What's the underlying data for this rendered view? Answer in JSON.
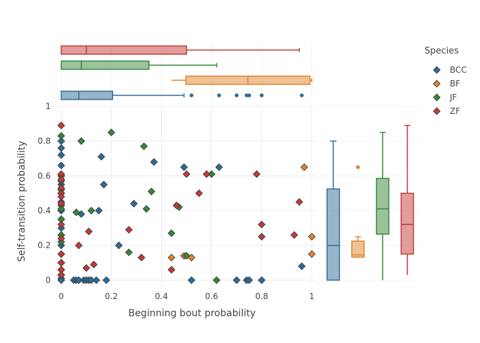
{
  "chart_data": {
    "type": "scatter",
    "title": "",
    "xlabel": "Beginning bout probability",
    "ylabel": "Self-transition probability",
    "xlim": [
      -0.02,
      1.02
    ],
    "ylim": [
      -0.03,
      1.0
    ],
    "x_ticks": [
      0,
      0.2,
      0.4,
      0.6,
      0.8,
      1
    ],
    "x_tick_labels": [
      "0",
      "0.2",
      "0.4",
      "0.6",
      "0.8",
      "1"
    ],
    "y_ticks": [
      0,
      0.2,
      0.4,
      0.6,
      0.8,
      1
    ],
    "y_tick_labels": [
      "0",
      "0.2",
      "0.4",
      "0.6",
      "0.8",
      "1"
    ],
    "grid": true,
    "marginal_x": "box (horizontal, per species)",
    "marginal_y": "box (vertical, per species)",
    "legend": {
      "title": "Species",
      "position": "top-right"
    },
    "series": [
      {
        "name": "BCC",
        "color": "#2f6b96",
        "x": [
          0,
          0,
          0,
          0,
          0,
          0,
          0,
          0,
          0,
          0,
          0,
          0,
          0,
          0,
          0,
          0,
          0,
          0,
          0,
          0.05,
          0.06,
          0.07,
          0.08,
          0.09,
          0.1,
          0.11,
          0.12,
          0.14,
          0.15,
          0.16,
          0.17,
          0.18,
          0.23,
          0.29,
          0.37,
          0.49,
          0.52,
          0.63,
          0.7,
          0.74,
          0.75,
          0.8,
          0.96
        ],
        "y": [
          0.8,
          0.76,
          0.72,
          0.66,
          0.6,
          0.55,
          0.5,
          0.45,
          0.4,
          0.35,
          0.3,
          0.26,
          0.2,
          0.15,
          0.1,
          0.06,
          0.03,
          0.01,
          0,
          0,
          0,
          0,
          0.38,
          0,
          0,
          0,
          0,
          0,
          0.4,
          0.71,
          0.55,
          0,
          0.2,
          0.44,
          0.68,
          0.65,
          0,
          0.65,
          0,
          0,
          0,
          0,
          0.08
        ]
      },
      {
        "name": "BF",
        "color": "#e0832c",
        "x": [
          0.44,
          0.49,
          0.52,
          0.97,
          1.0,
          1.0
        ],
        "y": [
          0.13,
          0.14,
          0.13,
          0.65,
          0.25,
          0.15
        ]
      },
      {
        "name": "JF",
        "color": "#36873a",
        "x": [
          0,
          0,
          0,
          0,
          0,
          0,
          0,
          0,
          0,
          0,
          0.06,
          0.08,
          0.12,
          0.2,
          0.27,
          0.33,
          0.34,
          0.36,
          0.44,
          0.47,
          0.5,
          0.6,
          0.62
        ],
        "y": [
          0.83,
          0.6,
          0.57,
          0.52,
          0.43,
          0.41,
          0.35,
          0.26,
          0.22,
          0.1,
          0.39,
          0.8,
          0.4,
          0.85,
          0.16,
          0.77,
          0.41,
          0.51,
          0.27,
          0.42,
          0.14,
          0.61,
          0
        ]
      },
      {
        "name": "ZF",
        "color": "#c33a3a",
        "x": [
          0,
          0,
          0,
          0,
          0,
          0,
          0,
          0,
          0,
          0,
          0,
          0,
          0,
          0.07,
          0.1,
          0.11,
          0.13,
          0.27,
          0.32,
          0.44,
          0.46,
          0.5,
          0.55,
          0.58,
          0.78,
          0.8,
          0.8,
          0.93,
          0.95
        ],
        "y": [
          0.89,
          0.61,
          0.58,
          0.53,
          0.5,
          0.48,
          0.44,
          0.32,
          0.24,
          0.15,
          0.1,
          0.06,
          0.03,
          0.2,
          0.07,
          0.28,
          0.09,
          0.29,
          0.13,
          0.06,
          0.43,
          0.61,
          0.5,
          0.61,
          0.61,
          0.32,
          0.25,
          0.26,
          0.45
        ]
      }
    ]
  },
  "legend": {
    "title": "Species",
    "items": [
      {
        "label": "BCC",
        "color": "#2f6b96"
      },
      {
        "label": "BF",
        "color": "#e0832c"
      },
      {
        "label": "JF",
        "color": "#36873a"
      },
      {
        "label": "ZF",
        "color": "#c33a3a"
      }
    ]
  }
}
